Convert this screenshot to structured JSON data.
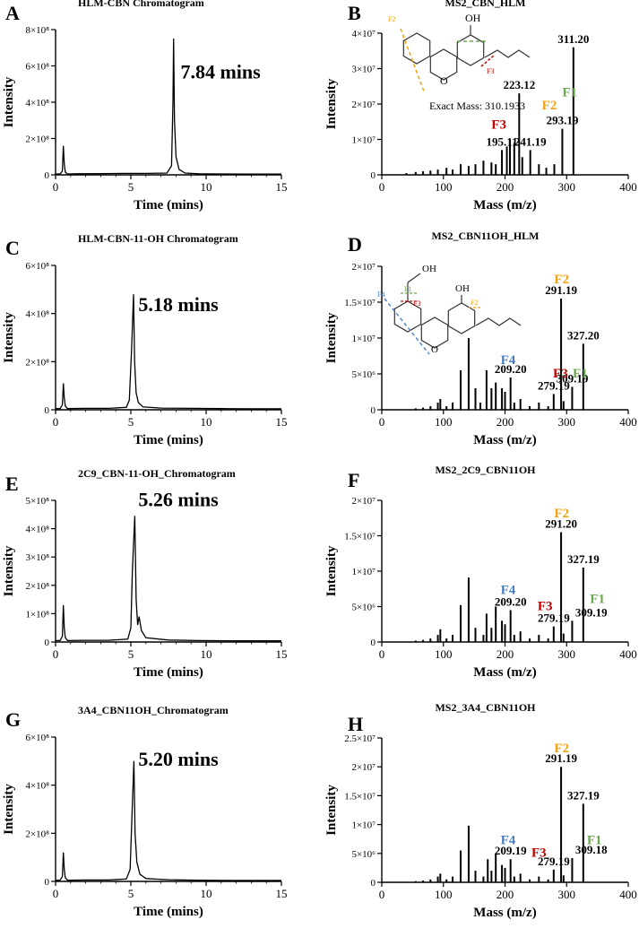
{
  "panel_letters": [
    "A",
    "B",
    "C",
    "D",
    "E",
    "F",
    "G",
    "H"
  ],
  "chart_data": [
    {
      "id": "A",
      "type": "line",
      "title": "HLM-CBN Chromatogram",
      "xlabel": "Time (mins)",
      "ylabel": "Intensity",
      "xlim": [
        0,
        15
      ],
      "ylim": [
        0,
        8
      ],
      "x_ticks": [
        "0",
        "5",
        "10",
        "15"
      ],
      "y_ticks": [
        "0",
        "2×10⁸",
        "4×10⁸",
        "6×10⁸",
        "8×10⁸"
      ],
      "x": [
        0.0,
        0.3,
        0.45,
        0.52,
        0.58,
        0.65,
        0.8,
        1.5,
        3.0,
        4.5,
        6.0,
        7.4,
        7.7,
        7.8,
        7.84,
        7.9,
        8.0,
        8.2,
        8.6,
        9.5,
        11.0,
        13.0,
        15.0
      ],
      "values": [
        0.05,
        0.05,
        0.2,
        1.6,
        0.6,
        0.15,
        0.05,
        0.06,
        0.07,
        0.08,
        0.08,
        0.1,
        0.5,
        4.0,
        7.5,
        3.0,
        1.0,
        0.3,
        0.1,
        0.06,
        0.05,
        0.04,
        0.04
      ],
      "annotations": [
        {
          "text": "7.84 mins",
          "x": 8.3,
          "y": 5.3
        }
      ],
      "grid": false
    },
    {
      "id": "B",
      "type": "bar",
      "title": "MS2_CBN_HLM",
      "xlabel": "Mass (m/z)",
      "ylabel": "Intensity",
      "xlim": [
        0,
        400
      ],
      "ylim": [
        0,
        4
      ],
      "x_ticks": [
        "0",
        "100",
        "200",
        "300",
        "400"
      ],
      "y_ticks": [
        "0",
        "1×10⁷",
        "2×10⁷",
        "3×10⁷",
        "4×10⁷"
      ],
      "x": [
        40,
        55,
        67,
        79,
        91,
        105,
        115,
        128,
        141,
        152,
        165,
        178,
        185,
        195,
        203,
        208,
        215,
        223,
        228,
        241,
        255,
        267,
        280,
        293,
        311
      ],
      "values": [
        0.05,
        0.08,
        0.1,
        0.12,
        0.15,
        0.2,
        0.15,
        0.3,
        0.25,
        0.3,
        0.4,
        0.35,
        0.3,
        0.7,
        0.8,
        1.0,
        0.9,
        2.3,
        0.5,
        0.7,
        0.3,
        0.2,
        0.3,
        1.3,
        3.6
      ],
      "peak_labels": [
        {
          "text": "311.20",
          "x": 311,
          "y": 3.6
        },
        {
          "text": "223.12",
          "x": 223,
          "y": 2.3
        },
        {
          "text": "293.19",
          "x": 293,
          "y": 1.3
        },
        {
          "text": "195.11",
          "x": 195,
          "y": 0.7
        },
        {
          "text": "241.19",
          "x": 241,
          "y": 0.7
        }
      ],
      "fragment_labels": [
        {
          "text": "F1",
          "color": "#6aa84f",
          "x": 305,
          "y": 2.22
        },
        {
          "text": "F2",
          "color": "#f1a20e",
          "x": 272,
          "y": 1.85
        },
        {
          "text": "F3",
          "color": "#c00000",
          "x": 190,
          "y": 1.3
        }
      ],
      "structure": {
        "exact_mass_label": "Exact Mass: 310.1933",
        "oh_label": "OH",
        "cut_labels": [
          "F1",
          "F2",
          "F3"
        ]
      },
      "grid": false
    },
    {
      "id": "C",
      "type": "line",
      "title": "HLM-CBN-11-OH Chromatogram",
      "xlabel": "Time (mins)",
      "ylabel": "Intensity",
      "xlim": [
        0,
        15
      ],
      "ylim": [
        0,
        6
      ],
      "x_ticks": [
        "0",
        "5",
        "10",
        "15"
      ],
      "y_ticks": [
        "0",
        "2×10⁸",
        "4×10⁸",
        "6×10⁸"
      ],
      "x": [
        0.0,
        0.3,
        0.45,
        0.52,
        0.58,
        0.65,
        0.8,
        2.0,
        3.5,
        4.7,
        4.9,
        5.05,
        5.18,
        5.25,
        5.35,
        5.5,
        5.8,
        7.0,
        9.0,
        11.0,
        13.0,
        15.0
      ],
      "values": [
        0.05,
        0.05,
        0.2,
        1.1,
        0.5,
        0.15,
        0.05,
        0.06,
        0.06,
        0.1,
        0.4,
        2.5,
        4.8,
        2.0,
        0.7,
        0.3,
        0.12,
        0.07,
        0.06,
        0.05,
        0.04,
        0.04
      ],
      "annotations": [
        {
          "text": "5.18 mins",
          "x": 5.5,
          "y": 4.1
        }
      ],
      "grid": false
    },
    {
      "id": "D",
      "type": "bar",
      "title": "MS2_CBN11OH_HLM",
      "xlabel": "Mass (m/z)",
      "ylabel": "Intensity",
      "xlim": [
        0,
        400
      ],
      "ylim": [
        0,
        2
      ],
      "x_ticks": [
        "0",
        "100",
        "200",
        "300",
        "400"
      ],
      "y_ticks": [
        "0",
        "5×10⁶",
        "1×10⁷",
        "1.5×10⁷",
        "2×10⁷"
      ],
      "x": [
        55,
        67,
        79,
        91,
        95,
        105,
        115,
        128,
        141,
        152,
        160,
        170,
        178,
        185,
        195,
        200,
        209,
        215,
        225,
        240,
        255,
        270,
        279,
        291,
        295,
        309,
        327
      ],
      "values": [
        0.02,
        0.03,
        0.05,
        0.1,
        0.15,
        0.05,
        0.1,
        0.55,
        1.0,
        0.3,
        0.1,
        0.55,
        0.3,
        0.38,
        0.3,
        0.25,
        0.45,
        0.1,
        0.15,
        0.05,
        0.1,
        0.05,
        0.22,
        1.55,
        0.12,
        0.32,
        0.92
      ],
      "peak_labels": [
        {
          "text": "291.19",
          "x": 291,
          "y": 1.55
        },
        {
          "text": "327.20",
          "x": 327,
          "y": 0.92
        },
        {
          "text": "209.20",
          "x": 209,
          "y": 0.45
        },
        {
          "text": "279.19",
          "x": 279,
          "y": 0.22
        },
        {
          "text": "309.19",
          "x": 309,
          "y": 0.32
        }
      ],
      "fragment_labels": [
        {
          "text": "F2",
          "color": "#f1a20e",
          "x": 292,
          "y": 1.76
        },
        {
          "text": "F4",
          "color": "#4a7fc1",
          "x": 205,
          "y": 0.64
        },
        {
          "text": "F3",
          "color": "#c00000",
          "x": 290,
          "y": 0.45
        },
        {
          "text": "F1",
          "color": "#6aa84f",
          "x": 322,
          "y": 0.45
        }
      ],
      "structure": {
        "oh_labels": [
          "OH",
          "OH"
        ],
        "cut_labels": [
          "F1",
          "F2",
          "F3",
          "F4"
        ]
      },
      "grid": false
    },
    {
      "id": "E",
      "type": "line",
      "title": "2C9_CBN-11-OH_Chromatogram",
      "xlabel": "Time (mins)",
      "ylabel": "Intensity",
      "xlim": [
        0,
        15
      ],
      "ylim": [
        0,
        5
      ],
      "x_ticks": [
        "0",
        "5",
        "10",
        "15"
      ],
      "y_ticks": [
        "0",
        "1×10⁸",
        "2×10⁸",
        "3×10⁸",
        "4×10⁸",
        "5×10⁸"
      ],
      "x": [
        0.0,
        0.3,
        0.45,
        0.52,
        0.58,
        0.65,
        0.8,
        2.0,
        3.5,
        4.8,
        5.0,
        5.1,
        5.26,
        5.35,
        5.45,
        5.55,
        5.7,
        6.0,
        7.5,
        9.5,
        12.0,
        15.0
      ],
      "values": [
        0.05,
        0.05,
        0.2,
        1.3,
        0.5,
        0.15,
        0.05,
        0.06,
        0.06,
        0.1,
        0.5,
        2.5,
        4.45,
        1.5,
        0.6,
        0.9,
        0.4,
        0.15,
        0.07,
        0.05,
        0.04,
        0.04
      ],
      "annotations": [
        {
          "text": "5.26 mins",
          "x": 5.5,
          "y": 4.8
        }
      ],
      "grid": false
    },
    {
      "id": "F",
      "type": "bar",
      "title": "MS2_2C9_CBN11OH",
      "xlabel": "Mass (m/z)",
      "ylabel": "Intensity",
      "xlim": [
        0,
        400
      ],
      "ylim": [
        0,
        2
      ],
      "x_ticks": [
        "0",
        "100",
        "200",
        "300",
        "400"
      ],
      "y_ticks": [
        "0",
        "5×10⁶",
        "1×10⁷",
        "1.5×10⁷",
        "2×10⁷"
      ],
      "x": [
        55,
        67,
        79,
        91,
        95,
        105,
        115,
        128,
        141,
        152,
        165,
        170,
        178,
        185,
        195,
        200,
        209,
        215,
        225,
        240,
        255,
        270,
        279,
        291,
        295,
        309,
        327
      ],
      "values": [
        0.02,
        0.03,
        0.05,
        0.1,
        0.18,
        0.05,
        0.1,
        0.52,
        0.91,
        0.2,
        0.1,
        0.4,
        0.2,
        0.5,
        0.3,
        0.25,
        0.45,
        0.1,
        0.15,
        0.05,
        0.1,
        0.05,
        0.22,
        1.55,
        0.12,
        0.3,
        1.05
      ],
      "peak_labels": [
        {
          "text": "291.20",
          "x": 291,
          "y": 1.55
        },
        {
          "text": "327.19",
          "x": 327,
          "y": 1.05
        },
        {
          "text": "209.20",
          "x": 209,
          "y": 0.45
        },
        {
          "text": "279.19",
          "x": 279,
          "y": 0.22
        },
        {
          "text": "309.19",
          "x": 340,
          "y": 0.3
        }
      ],
      "fragment_labels": [
        {
          "text": "F2",
          "color": "#f1a20e",
          "x": 292,
          "y": 1.76
        },
        {
          "text": "F4",
          "color": "#4a7fc1",
          "x": 205,
          "y": 0.68
        },
        {
          "text": "F3",
          "color": "#c00000",
          "x": 265,
          "y": 0.45
        },
        {
          "text": "F1",
          "color": "#6aa84f",
          "x": 350,
          "y": 0.55
        }
      ],
      "grid": false
    },
    {
      "id": "G",
      "type": "line",
      "title": "3A4_CBN11OH_Chromatogram",
      "xlabel": "Time (mins)",
      "ylabel": "Intensity",
      "xlim": [
        0,
        15
      ],
      "ylim": [
        0,
        6
      ],
      "x_ticks": [
        "0",
        "5",
        "10",
        "15"
      ],
      "y_ticks": [
        "0",
        "2×10⁸",
        "4×10⁸",
        "6×10⁸"
      ],
      "x": [
        0.0,
        0.3,
        0.45,
        0.52,
        0.58,
        0.65,
        0.8,
        2.0,
        3.5,
        4.7,
        4.95,
        5.08,
        5.2,
        5.28,
        5.4,
        5.6,
        6.0,
        7.5,
        9.5,
        12.0,
        15.0
      ],
      "values": [
        0.05,
        0.05,
        0.2,
        1.2,
        0.5,
        0.15,
        0.05,
        0.06,
        0.06,
        0.1,
        0.5,
        2.8,
        5.0,
        2.0,
        0.8,
        0.3,
        0.12,
        0.07,
        0.05,
        0.04,
        0.04
      ],
      "annotations": [
        {
          "text": "5.20 mins",
          "x": 5.5,
          "y": 4.8
        }
      ],
      "grid": false
    },
    {
      "id": "H",
      "type": "bar",
      "title": "MS2_3A4_CBN11OH",
      "xlabel": "Mass (m/z)",
      "ylabel": "Intensity",
      "xlim": [
        0,
        400
      ],
      "ylim": [
        0,
        2.5
      ],
      "x_ticks": [
        "0",
        "100",
        "200",
        "300",
        "400"
      ],
      "y_ticks": [
        "0",
        "5×10⁶",
        "1×10⁷",
        "1.5×10⁷",
        "2×10⁷",
        "2.5×10⁷"
      ],
      "x": [
        55,
        67,
        79,
        91,
        95,
        105,
        115,
        128,
        141,
        152,
        165,
        172,
        178,
        185,
        195,
        200,
        209,
        215,
        225,
        240,
        255,
        270,
        279,
        291,
        295,
        309,
        327
      ],
      "values": [
        0.02,
        0.03,
        0.05,
        0.1,
        0.15,
        0.05,
        0.1,
        0.55,
        0.98,
        0.2,
        0.1,
        0.4,
        0.2,
        0.5,
        0.3,
        0.25,
        0.4,
        0.1,
        0.15,
        0.05,
        0.1,
        0.05,
        0.22,
        2.0,
        0.12,
        0.42,
        1.36
      ],
      "peak_labels": [
        {
          "text": "291.19",
          "x": 291,
          "y": 2.0
        },
        {
          "text": "327.19",
          "x": 327,
          "y": 1.36
        },
        {
          "text": "209.19",
          "x": 209,
          "y": 0.4
        },
        {
          "text": "279.19",
          "x": 279,
          "y": 0.22
        },
        {
          "text": "309.18",
          "x": 340,
          "y": 0.42
        }
      ],
      "fragment_labels": [
        {
          "text": "F2",
          "color": "#f1a20e",
          "x": 292,
          "y": 2.25
        },
        {
          "text": "F4",
          "color": "#4a7fc1",
          "x": 205,
          "y": 0.66
        },
        {
          "text": "F3",
          "color": "#c00000",
          "x": 255,
          "y": 0.44
        },
        {
          "text": "F1",
          "color": "#6aa84f",
          "x": 345,
          "y": 0.66
        }
      ],
      "grid": false
    }
  ]
}
